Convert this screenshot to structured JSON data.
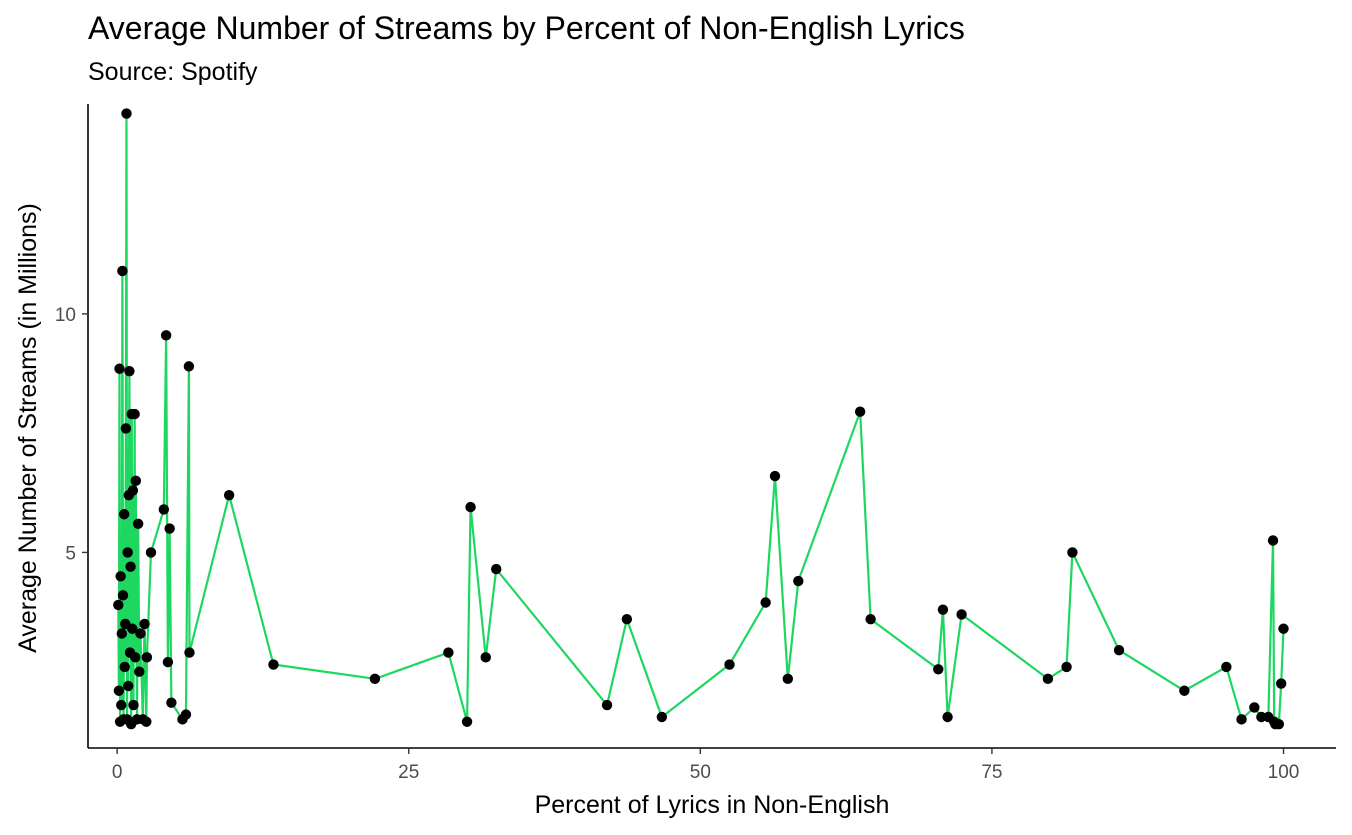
{
  "chart_data": {
    "type": "line",
    "title": "Average Number of Streams by Percent of Non-English Lyrics",
    "subtitle": "Source: Spotify",
    "xlabel": "Percent of Lyrics in Non-English",
    "ylabel": "Average Number of Streams (in Millions)",
    "xlim": [
      -2.5,
      104.5
    ],
    "ylim": [
      0.9,
      14.4
    ],
    "x_ticks": [
      0,
      25,
      50,
      75,
      100
    ],
    "y_ticks": [
      5,
      10
    ],
    "grid": false,
    "line_color": "#1ed760",
    "point_color": "#000000",
    "points": [
      [
        0.1,
        3.9
      ],
      [
        0.15,
        2.1
      ],
      [
        0.2,
        8.85
      ],
      [
        0.25,
        1.45
      ],
      [
        0.3,
        4.5
      ],
      [
        0.35,
        1.8
      ],
      [
        0.4,
        3.3
      ],
      [
        0.45,
        10.9
      ],
      [
        0.5,
        4.1
      ],
      [
        0.55,
        1.5
      ],
      [
        0.6,
        5.8
      ],
      [
        0.65,
        2.6
      ],
      [
        0.7,
        3.5
      ],
      [
        0.75,
        7.6
      ],
      [
        0.8,
        14.2
      ],
      [
        0.85,
        1.5
      ],
      [
        0.9,
        5.0
      ],
      [
        0.95,
        2.2
      ],
      [
        1.0,
        6.2
      ],
      [
        1.05,
        8.8
      ],
      [
        1.1,
        2.9
      ],
      [
        1.15,
        4.7
      ],
      [
        1.2,
        1.4
      ],
      [
        1.25,
        7.9
      ],
      [
        1.3,
        3.4
      ],
      [
        1.35,
        6.3
      ],
      [
        1.4,
        1.8
      ],
      [
        1.5,
        7.9
      ],
      [
        1.55,
        2.8
      ],
      [
        1.6,
        6.5
      ],
      [
        1.7,
        1.5
      ],
      [
        1.8,
        5.6
      ],
      [
        1.9,
        2.5
      ],
      [
        2.0,
        3.3
      ],
      [
        2.2,
        1.5
      ],
      [
        2.35,
        3.5
      ],
      [
        2.5,
        1.45
      ],
      [
        2.55,
        2.8
      ],
      [
        2.9,
        5.0
      ],
      [
        4.0,
        5.9
      ],
      [
        4.2,
        9.55
      ],
      [
        4.35,
        2.7
      ],
      [
        4.5,
        5.5
      ],
      [
        4.65,
        1.85
      ],
      [
        5.6,
        1.5
      ],
      [
        5.9,
        1.6
      ],
      [
        6.15,
        8.9
      ],
      [
        6.2,
        2.9
      ],
      [
        9.6,
        6.2
      ],
      [
        13.4,
        2.65
      ],
      [
        22.1,
        2.35
      ],
      [
        28.4,
        2.9
      ],
      [
        30.0,
        1.45
      ],
      [
        30.3,
        5.95
      ],
      [
        31.6,
        2.8
      ],
      [
        32.5,
        4.65
      ],
      [
        42.0,
        1.8
      ],
      [
        43.7,
        3.6
      ],
      [
        46.7,
        1.55
      ],
      [
        52.5,
        2.65
      ],
      [
        55.6,
        3.95
      ],
      [
        56.4,
        6.6
      ],
      [
        57.5,
        2.35
      ],
      [
        58.4,
        4.4
      ],
      [
        63.7,
        7.95
      ],
      [
        64.6,
        3.6
      ],
      [
        70.4,
        2.55
      ],
      [
        70.8,
        3.8
      ],
      [
        71.2,
        1.55
      ],
      [
        72.4,
        3.7
      ],
      [
        79.8,
        2.35
      ],
      [
        81.4,
        2.6
      ],
      [
        81.9,
        5.0
      ],
      [
        85.9,
        2.95
      ],
      [
        91.5,
        2.1
      ],
      [
        95.1,
        2.6
      ],
      [
        96.4,
        1.5
      ],
      [
        97.5,
        1.75
      ],
      [
        98.1,
        1.55
      ],
      [
        98.7,
        1.55
      ],
      [
        99.1,
        5.25
      ],
      [
        99.2,
        1.45
      ],
      [
        99.3,
        1.4
      ],
      [
        99.6,
        1.4
      ],
      [
        99.8,
        2.25
      ],
      [
        100.0,
        3.4
      ]
    ]
  }
}
